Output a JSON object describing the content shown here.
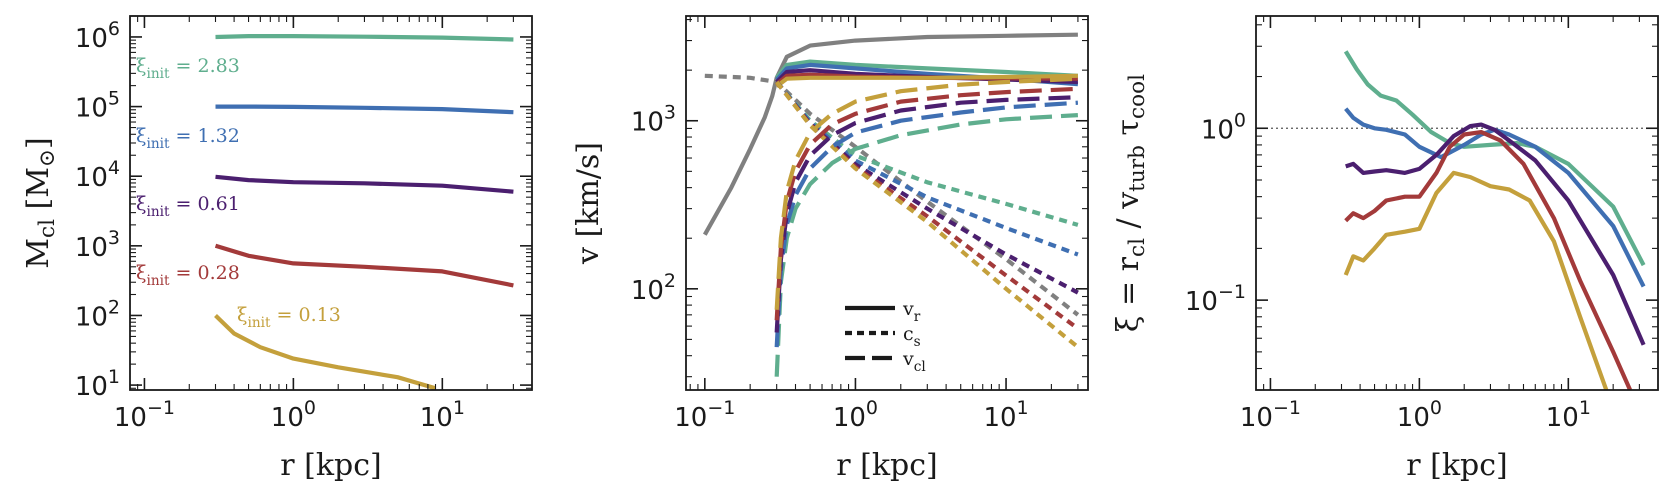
{
  "chart_data": [
    {
      "type": "line",
      "panel": "left",
      "xlabel": "r [kpc]",
      "ylabel": "M_cl [M_⊙]",
      "xscale": "log",
      "yscale": "log",
      "xlim": [
        0.08,
        40
      ],
      "ylim": [
        8.5,
        2000000
      ],
      "xticks": [
        0.1,
        1,
        10
      ],
      "xtick_labels": [
        "10^−1",
        "10^0",
        "10^1"
      ],
      "yticks": [
        10,
        100,
        1000,
        10000,
        100000,
        1000000
      ],
      "ytick_labels": [
        "10^1",
        "10^2",
        "10^3",
        "10^4",
        "10^5",
        "10^6"
      ],
      "series": [
        {
          "name": "ξ_init = 2.83",
          "color": "#5fae8e",
          "style": "solid",
          "x": [
            0.3,
            0.5,
            1,
            3,
            10,
            30
          ],
          "y": [
            1000000,
            1030000,
            1030000,
            1010000,
            980000,
            920000
          ]
        },
        {
          "name": "ξ_init = 1.32",
          "color": "#3f6fb2",
          "style": "solid",
          "x": [
            0.3,
            0.5,
            1,
            3,
            10,
            30
          ],
          "y": [
            100000,
            100000,
            99000,
            96000,
            92000,
            83000
          ]
        },
        {
          "name": "ξ_init = 0.61",
          "color": "#4b1f6f",
          "style": "solid",
          "x": [
            0.3,
            0.5,
            1,
            3,
            10,
            30
          ],
          "y": [
            9800,
            8800,
            8200,
            7900,
            7300,
            6000
          ]
        },
        {
          "name": "ξ_init = 0.28",
          "color": "#a33a3a",
          "style": "solid",
          "x": [
            0.3,
            0.5,
            1,
            3,
            10,
            30
          ],
          "y": [
            1000,
            720,
            560,
            500,
            430,
            270
          ]
        },
        {
          "name": "ξ_init = 0.13",
          "color": "#c4a03c",
          "style": "solid",
          "x": [
            0.3,
            0.4,
            0.6,
            1,
            2,
            5,
            9
          ],
          "y": [
            100,
            55,
            35,
            24,
            18,
            13,
            9
          ]
        }
      ],
      "annotations": [
        "ξ_init = 2.83",
        "ξ_init = 1.32",
        "ξ_init = 0.61",
        "ξ_init = 0.28",
        "ξ_init = 0.13"
      ]
    },
    {
      "type": "line",
      "panel": "middle",
      "xlabel": "r [kpc]",
      "ylabel": "v [km/s]",
      "xscale": "log",
      "yscale": "log",
      "xlim": [
        0.075,
        35
      ],
      "ylim": [
        25,
        4200
      ],
      "xticks": [
        0.1,
        1,
        10
      ],
      "xtick_labels": [
        "10^−1",
        "10^0",
        "10^1"
      ],
      "yticks": [
        100,
        1000
      ],
      "ytick_labels": [
        "10^2",
        "10^3"
      ],
      "legend": {
        "position": "bottom-center",
        "entries": [
          {
            "label": "v_r",
            "style": "solid"
          },
          {
            "label": "c_s",
            "style": "dotted"
          },
          {
            "label": "v_cl",
            "style": "dashed"
          }
        ]
      },
      "series": [
        {
          "name": "",
          "kind": "v_r",
          "color": "#808080",
          "style": "solid",
          "x": [
            0.1,
            0.15,
            0.2,
            0.25,
            0.28,
            0.3,
            0.35,
            0.5,
            1,
            3,
            10,
            30
          ],
          "y": [
            210,
            400,
            680,
            1050,
            1400,
            1800,
            2400,
            2800,
            3000,
            3150,
            3200,
            3250
          ]
        },
        {
          "name": "",
          "kind": "c_s",
          "color": "#808080",
          "style": "dotted",
          "x": [
            0.1,
            0.2,
            0.3,
            0.5,
            1,
            3,
            10,
            30
          ],
          "y": [
            1850,
            1800,
            1700,
            1100,
            700,
            330,
            150,
            70
          ]
        },
        {
          "name": "ξ_init = 2.83",
          "kind": "v_r",
          "color": "#5fae8e",
          "style": "solid",
          "x": [
            0.3,
            0.35,
            0.5,
            1,
            3,
            10,
            30
          ],
          "y": [
            1800,
            2150,
            2250,
            2150,
            2050,
            1950,
            1850
          ]
        },
        {
          "name": "ξ_init = 1.32",
          "kind": "v_r",
          "color": "#3f6fb2",
          "style": "solid",
          "x": [
            0.3,
            0.35,
            0.5,
            1,
            3,
            10,
            30
          ],
          "y": [
            1750,
            2050,
            2150,
            2050,
            1900,
            1780,
            1650
          ]
        },
        {
          "name": "ξ_init = 0.61",
          "kind": "v_r",
          "color": "#4b1f6f",
          "style": "solid",
          "x": [
            0.3,
            0.35,
            0.5,
            1,
            3,
            10,
            30
          ],
          "y": [
            1700,
            1950,
            2000,
            1900,
            1820,
            1760,
            1700
          ]
        },
        {
          "name": "ξ_init = 0.28",
          "kind": "v_r",
          "color": "#a33a3a",
          "style": "solid",
          "x": [
            0.3,
            0.35,
            0.5,
            1,
            3,
            10,
            30
          ],
          "y": [
            1650,
            1850,
            1880,
            1830,
            1800,
            1790,
            1780
          ]
        },
        {
          "name": "ξ_init = 0.13",
          "kind": "v_r",
          "color": "#c4a03c",
          "style": "solid",
          "x": [
            0.3,
            0.35,
            0.5,
            1,
            3,
            10,
            30
          ],
          "y": [
            1600,
            1780,
            1800,
            1800,
            1800,
            1820,
            1850
          ]
        },
        {
          "name": "ξ_init = 2.83",
          "kind": "c_s",
          "color": "#5fae8e",
          "style": "dotted",
          "x": [
            0.3,
            0.5,
            1,
            3,
            10,
            30
          ],
          "y": [
            1700,
            1000,
            620,
            430,
            320,
            240
          ]
        },
        {
          "name": "ξ_init = 1.32",
          "kind": "c_s",
          "color": "#3f6fb2",
          "style": "dotted",
          "x": [
            0.3,
            0.5,
            1,
            3,
            10,
            30
          ],
          "y": [
            1700,
            980,
            580,
            350,
            230,
            160
          ]
        },
        {
          "name": "ξ_init = 0.61",
          "kind": "c_s",
          "color": "#4b1f6f",
          "style": "dotted",
          "x": [
            0.3,
            0.5,
            1,
            3,
            10,
            30
          ],
          "y": [
            1700,
            960,
            550,
            300,
            160,
            95
          ]
        },
        {
          "name": "ξ_init = 0.28",
          "kind": "c_s",
          "color": "#a33a3a",
          "style": "dotted",
          "x": [
            0.3,
            0.5,
            1,
            3,
            10,
            30
          ],
          "y": [
            1700,
            950,
            530,
            270,
            120,
            58
          ]
        },
        {
          "name": "ξ_init = 0.13",
          "kind": "c_s",
          "color": "#c4a03c",
          "style": "dotted",
          "x": [
            0.3,
            0.5,
            1,
            3,
            10,
            30
          ],
          "y": [
            1700,
            940,
            520,
            250,
            100,
            45
          ]
        },
        {
          "name": "ξ_init = 2.83",
          "kind": "v_cl",
          "color": "#5fae8e",
          "style": "dashed",
          "x": [
            0.3,
            0.32,
            0.35,
            0.4,
            0.5,
            0.7,
            1,
            2,
            5,
            10,
            30
          ],
          "y": [
            30,
            110,
            200,
            300,
            420,
            560,
            680,
            820,
            950,
            1020,
            1080
          ]
        },
        {
          "name": "ξ_init = 1.32",
          "kind": "v_cl",
          "color": "#3f6fb2",
          "style": "dashed",
          "x": [
            0.3,
            0.32,
            0.35,
            0.4,
            0.5,
            0.7,
            1,
            2,
            5,
            10,
            30
          ],
          "y": [
            45,
            130,
            240,
            360,
            520,
            700,
            850,
            1000,
            1120,
            1200,
            1280
          ]
        },
        {
          "name": "ξ_init = 0.61",
          "kind": "v_cl",
          "color": "#4b1f6f",
          "style": "dashed",
          "x": [
            0.3,
            0.32,
            0.35,
            0.4,
            0.5,
            0.7,
            1,
            2,
            5,
            10,
            30
          ],
          "y": [
            55,
            150,
            280,
            430,
            620,
            820,
            970,
            1150,
            1280,
            1330,
            1380
          ]
        },
        {
          "name": "ξ_init = 0.28",
          "kind": "v_cl",
          "color": "#a33a3a",
          "style": "dashed",
          "x": [
            0.3,
            0.32,
            0.35,
            0.4,
            0.5,
            0.7,
            1,
            2,
            5,
            10,
            30
          ],
          "y": [
            65,
            175,
            330,
            500,
            720,
            950,
            1100,
            1300,
            1420,
            1480,
            1550
          ]
        },
        {
          "name": "ξ_init = 0.13",
          "kind": "v_cl",
          "color": "#c4a03c",
          "style": "dashed",
          "x": [
            0.3,
            0.32,
            0.35,
            0.4,
            0.5,
            0.7,
            1,
            2,
            5,
            10,
            30
          ],
          "y": [
            75,
            200,
            380,
            580,
            850,
            1100,
            1300,
            1500,
            1640,
            1700,
            1780
          ]
        }
      ]
    },
    {
      "type": "line",
      "panel": "right",
      "xlabel": "r [kpc]",
      "ylabel": "ξ = r_cl / v_turb τ_cool",
      "xscale": "log",
      "yscale": "log",
      "xlim": [
        0.08,
        40
      ],
      "ylim": [
        0.03,
        4.5
      ],
      "xticks": [
        0.1,
        1,
        10
      ],
      "xtick_labels": [
        "10^−1",
        "10^0",
        "10^1"
      ],
      "yticks": [
        0.1,
        1
      ],
      "ytick_labels": [
        "10^−1",
        "10^0"
      ],
      "hline": {
        "y": 1.0,
        "style": "dotted",
        "color": "#555555"
      },
      "series": [
        {
          "name": "ξ_init = 2.83",
          "color": "#5fae8e",
          "style": "solid",
          "x": [
            0.32,
            0.38,
            0.45,
            0.55,
            0.7,
            0.9,
            1.2,
            1.6,
            2,
            3,
            4.5,
            6,
            10,
            20,
            32
          ],
          "y": [
            2.8,
            2.2,
            1.8,
            1.55,
            1.45,
            1.2,
            0.95,
            0.82,
            0.78,
            0.8,
            0.82,
            0.78,
            0.62,
            0.35,
            0.16
          ]
        },
        {
          "name": "ξ_init = 1.32",
          "color": "#3f6fb2",
          "style": "solid",
          "x": [
            0.32,
            0.36,
            0.42,
            0.5,
            0.6,
            0.8,
            1,
            1.4,
            2,
            2.6,
            3.2,
            4,
            6,
            10,
            20,
            32
          ],
          "y": [
            1.3,
            1.15,
            1.05,
            1.0,
            0.98,
            0.92,
            0.78,
            0.68,
            0.8,
            0.92,
            0.98,
            0.92,
            0.78,
            0.55,
            0.27,
            0.12
          ]
        },
        {
          "name": "ξ_init = 0.61",
          "color": "#4b1f6f",
          "style": "solid",
          "x": [
            0.32,
            0.36,
            0.42,
            0.5,
            0.6,
            0.8,
            1,
            1.3,
            1.7,
            2.2,
            2.6,
            3.2,
            4,
            6,
            10,
            20,
            32
          ],
          "y": [
            0.6,
            0.62,
            0.55,
            0.56,
            0.57,
            0.55,
            0.58,
            0.7,
            0.9,
            1.03,
            1.05,
            0.98,
            0.85,
            0.65,
            0.38,
            0.14,
            0.055
          ]
        },
        {
          "name": "ξ_init = 0.28",
          "color": "#a33a3a",
          "style": "solid",
          "x": [
            0.32,
            0.36,
            0.42,
            0.5,
            0.6,
            0.8,
            1,
            1.3,
            1.6,
            2,
            2.6,
            3.5,
            5,
            8,
            12,
            20,
            26
          ],
          "y": [
            0.29,
            0.32,
            0.3,
            0.33,
            0.38,
            0.4,
            0.4,
            0.55,
            0.78,
            0.92,
            0.95,
            0.85,
            0.62,
            0.3,
            0.13,
            0.05,
            0.03
          ]
        },
        {
          "name": "ξ_init = 0.13",
          "color": "#c4a03c",
          "style": "solid",
          "x": [
            0.32,
            0.36,
            0.42,
            0.5,
            0.6,
            0.8,
            1,
            1.3,
            1.7,
            2.2,
            3,
            4,
            5.5,
            8,
            12,
            18
          ],
          "y": [
            0.14,
            0.18,
            0.17,
            0.2,
            0.24,
            0.25,
            0.26,
            0.42,
            0.55,
            0.52,
            0.46,
            0.44,
            0.38,
            0.22,
            0.08,
            0.03
          ]
        }
      ]
    }
  ]
}
